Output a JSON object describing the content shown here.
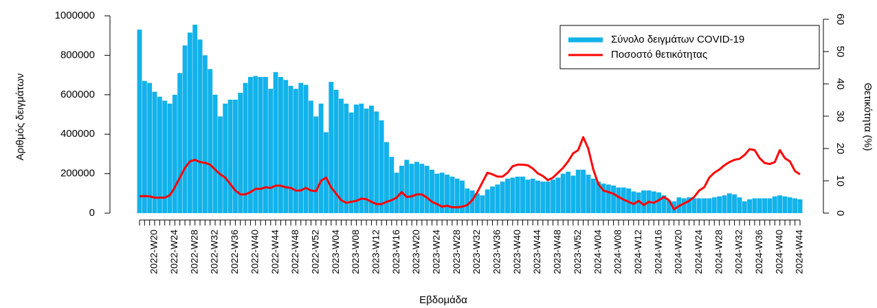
{
  "chart_data": {
    "type": "bar",
    "x_label": "Εβδομάδα",
    "y_label": "Αριθμός δειγμάτων",
    "y2_label": "Θετικότητα (%)",
    "categories": [
      null,
      null,
      null,
      "2022-W20",
      null,
      null,
      null,
      "2022-W24",
      null,
      null,
      null,
      "2022-W28",
      null,
      null,
      null,
      "2022-W32",
      null,
      null,
      null,
      "2022-W36",
      null,
      null,
      null,
      "2022-W40",
      null,
      null,
      null,
      "2022-W44",
      null,
      null,
      null,
      "2022-W48",
      null,
      null,
      null,
      "2022-W52",
      null,
      null,
      null,
      "2023-W04",
      null,
      null,
      null,
      "2023-W08",
      null,
      null,
      null,
      "2023-W12",
      null,
      null,
      null,
      "2023-W16",
      null,
      null,
      null,
      "2023-W20",
      null,
      null,
      null,
      "2023-W24",
      null,
      null,
      null,
      "2023-W28",
      null,
      null,
      null,
      "2023-W32",
      null,
      null,
      null,
      "2023-W36",
      null,
      null,
      null,
      "2023-W40",
      null,
      null,
      null,
      "2023-W44",
      null,
      null,
      null,
      "2023-W48",
      null,
      null,
      null,
      "2023-W52",
      null,
      null,
      null,
      "2024-W04",
      null,
      null,
      null,
      "2024-W08",
      null,
      null,
      null,
      "2024-W12",
      null,
      null,
      null,
      "2024-W16",
      null,
      null,
      null,
      "2024-W20",
      null,
      null,
      null,
      "2024-W24",
      null,
      null,
      null,
      "2024-W28",
      null,
      null,
      null,
      "2024-W32",
      null,
      null,
      null,
      "2024-W36",
      null,
      null,
      null,
      "2024-W40",
      null,
      null,
      null,
      "2024-W44"
    ],
    "series": [
      {
        "name": "Σύνολο δειγμάτων COVID-19",
        "type": "bar",
        "color": "#12b2ea",
        "values": [
          930000,
          670000,
          660000,
          615000,
          590000,
          570000,
          555000,
          600000,
          710000,
          850000,
          915000,
          955000,
          880000,
          800000,
          730000,
          600000,
          490000,
          555000,
          575000,
          575000,
          610000,
          660000,
          690000,
          695000,
          690000,
          690000,
          630000,
          715000,
          690000,
          675000,
          645000,
          630000,
          660000,
          650000,
          570000,
          490000,
          555000,
          410000,
          665000,
          625000,
          580000,
          555000,
          510000,
          550000,
          555000,
          530000,
          545000,
          515000,
          470000,
          360000,
          285000,
          205000,
          240000,
          270000,
          250000,
          260000,
          250000,
          240000,
          220000,
          200000,
          205000,
          195000,
          185000,
          175000,
          165000,
          125000,
          115000,
          100000,
          90000,
          120000,
          135000,
          145000,
          160000,
          175000,
          180000,
          185000,
          185000,
          170000,
          175000,
          165000,
          160000,
          160000,
          170000,
          180000,
          200000,
          210000,
          190000,
          220000,
          220000,
          195000,
          175000,
          160000,
          150000,
          145000,
          140000,
          130000,
          130000,
          125000,
          110000,
          105000,
          115000,
          115000,
          110000,
          105000,
          90000,
          65000,
          60000,
          80000,
          75000,
          80000,
          75000,
          75000,
          75000,
          75000,
          80000,
          85000,
          90000,
          100000,
          95000,
          80000,
          60000,
          70000,
          75000,
          75000,
          75000,
          75000,
          85000,
          90000,
          85000,
          80000,
          75000,
          70000
        ]
      },
      {
        "name": "Ποσοστό θετικότητας",
        "type": "line",
        "axis": "y2",
        "color": "#ff0000",
        "values": [
          5.2,
          5.3,
          5.2,
          4.8,
          4.8,
          4.8,
          5.5,
          8,
          11,
          14,
          16,
          16.5,
          15.8,
          15.6,
          15,
          13.5,
          12,
          11,
          9,
          7,
          5.8,
          5.8,
          6.5,
          7.5,
          7.5,
          8,
          7.8,
          8.5,
          8.5,
          8,
          7.8,
          7,
          7,
          7.8,
          7,
          6.8,
          10,
          11,
          8,
          6,
          4,
          3.2,
          3.5,
          3.8,
          4.5,
          4.3,
          3.5,
          2.8,
          2.8,
          3.5,
          4,
          4.8,
          6.5,
          5,
          5.2,
          5.8,
          5.8,
          4.8,
          3.5,
          2.8,
          2,
          2.3,
          1.8,
          1.8,
          2,
          2.5,
          4,
          6.5,
          9.5,
          12.5,
          12,
          11.3,
          11.3,
          12.5,
          14.5,
          15,
          15,
          14.8,
          13.8,
          12.3,
          11.5,
          10.2,
          11,
          12.5,
          14,
          16,
          18.5,
          19.5,
          23.5,
          20,
          13.5,
          9,
          7,
          6.5,
          6,
          5,
          4.2,
          3.5,
          2.8,
          3.8,
          2.5,
          3.5,
          3.2,
          4,
          5,
          4,
          1.2,
          2.2,
          3,
          3.8,
          5,
          7,
          8,
          11,
          12.5,
          13.5,
          14.8,
          15.8,
          16.5,
          16.8,
          18,
          19.8,
          19.5,
          17,
          15.5,
          15.2,
          15.8,
          19.5,
          17,
          16,
          13,
          12
        ]
      }
    ],
    "ylim": [
      0,
      1000000
    ],
    "yticks": [
      0,
      200000,
      400000,
      600000,
      800000,
      1000000
    ],
    "y2lim": [
      0,
      60
    ],
    "y2ticks": [
      0,
      10,
      20,
      30,
      40,
      50,
      60
    ],
    "legend": "topright"
  }
}
